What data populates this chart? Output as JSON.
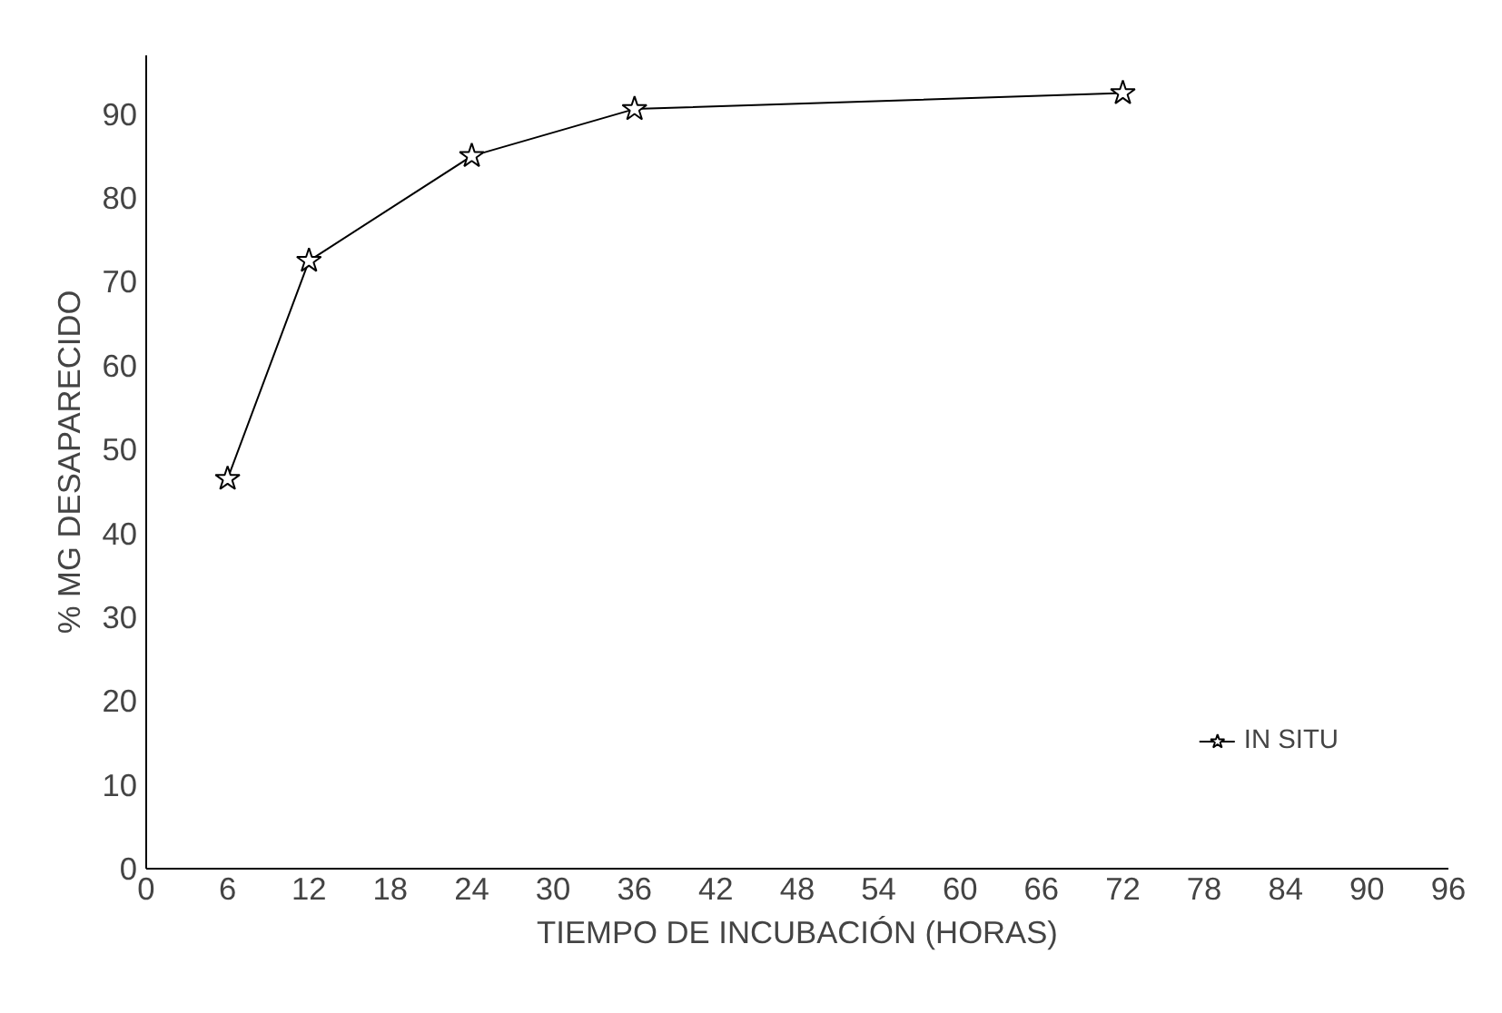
{
  "chart_data": {
    "type": "line",
    "xlabel": "TIEMPO DE INCUBACIÓN (HORAS)",
    "ylabel": "% MG DESAPARECIDO",
    "x": [
      6,
      12,
      24,
      36,
      72
    ],
    "series": [
      {
        "name": "IN SITU",
        "color": "#000000",
        "values": [
          46.5,
          72.5,
          85,
          90.6,
          92.5
        ]
      }
    ],
    "xlim": [
      0,
      96
    ],
    "xticks": [
      0,
      6,
      12,
      18,
      24,
      30,
      36,
      42,
      48,
      54,
      60,
      66,
      72,
      78,
      84,
      90,
      96
    ],
    "ylim": [
      0,
      97
    ],
    "yticks": [
      0,
      10,
      20,
      30,
      40,
      50,
      60,
      70,
      80,
      90
    ],
    "marker": "star",
    "line_style": "solid",
    "grid": false,
    "legend": "bottom right"
  }
}
